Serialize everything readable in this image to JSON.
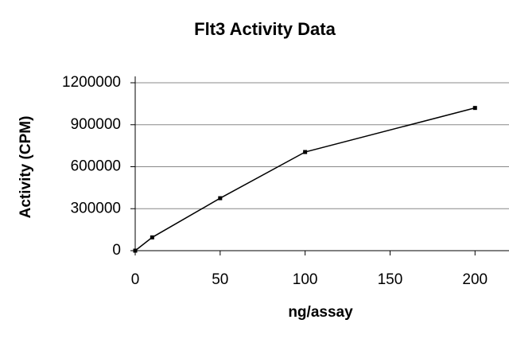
{
  "chart_data": {
    "type": "line",
    "title": "Flt3 Activity Data",
    "x_label": "ng/assay",
    "y_label": "Activity (CPM)",
    "x": [
      0,
      10,
      50,
      100,
      200
    ],
    "series": [
      {
        "color": "#000000",
        "values": [
          0,
          95000,
          375000,
          705000,
          1020000
        ]
      }
    ],
    "xlim": [
      0,
      220
    ],
    "xticks": [
      0,
      50,
      100,
      150,
      200
    ],
    "ylim": [
      0,
      1200000
    ],
    "yticks": [
      0,
      300000,
      600000,
      900000,
      1200000
    ],
    "grid": true
  }
}
